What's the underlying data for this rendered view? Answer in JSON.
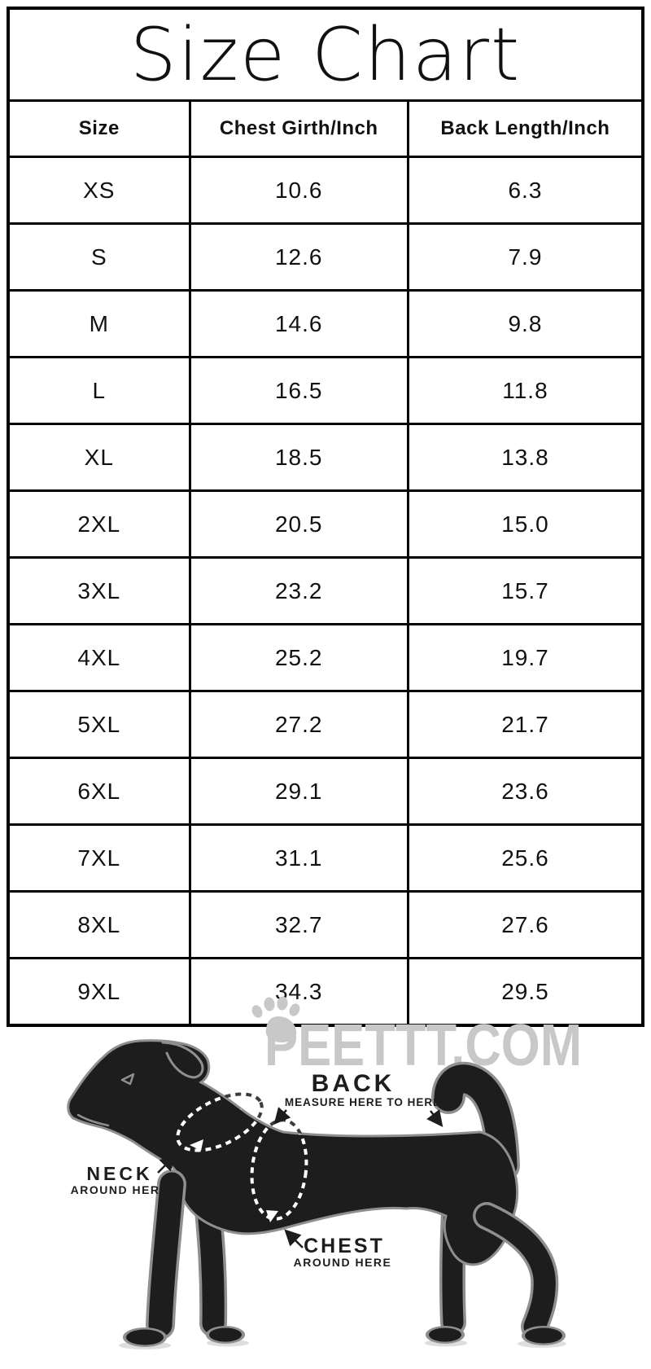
{
  "title": "Size Chart",
  "chart_data": {
    "type": "table",
    "title": "Size Chart",
    "columns": [
      "Size",
      "Chest Girth/Inch",
      "Back Length/Inch"
    ],
    "rows": [
      [
        "XS",
        "10.6",
        "6.3"
      ],
      [
        "S",
        "12.6",
        "7.9"
      ],
      [
        "M",
        "14.6",
        "9.8"
      ],
      [
        "L",
        "16.5",
        "11.8"
      ],
      [
        "XL",
        "18.5",
        "13.8"
      ],
      [
        "2XL",
        "20.5",
        "15.0"
      ],
      [
        "3XL",
        "23.2",
        "15.7"
      ],
      [
        "4XL",
        "25.2",
        "19.7"
      ],
      [
        "5XL",
        "27.2",
        "21.7"
      ],
      [
        "6XL",
        "29.1",
        "23.6"
      ],
      [
        "7XL",
        "31.1",
        "25.6"
      ],
      [
        "8XL",
        "32.7",
        "27.6"
      ],
      [
        "9XL",
        "34.3",
        "29.5"
      ]
    ],
    "units": "inch"
  },
  "watermark": {
    "text": "PEETTT.COM",
    "icon": "paw-print",
    "color": "#c8c8c8"
  },
  "diagram": {
    "back_label": "BACK",
    "back_sub": "MEASURE HERE TO HERE",
    "neck_label": "NECK",
    "neck_sub": "AROUND HERE",
    "chest_label": "CHEST",
    "chest_sub": "AROUND HERE",
    "dog_color": "#1d1d1d",
    "outline_color": "#8f8f8f",
    "dash_on_body_color": "#ffffff",
    "dash_off_body_color": "#3c3c3c",
    "label_color": "#1d1d1d"
  },
  "colors": {
    "background": "#ffffff",
    "table_border": "#000000",
    "table_text": "#111111"
  }
}
